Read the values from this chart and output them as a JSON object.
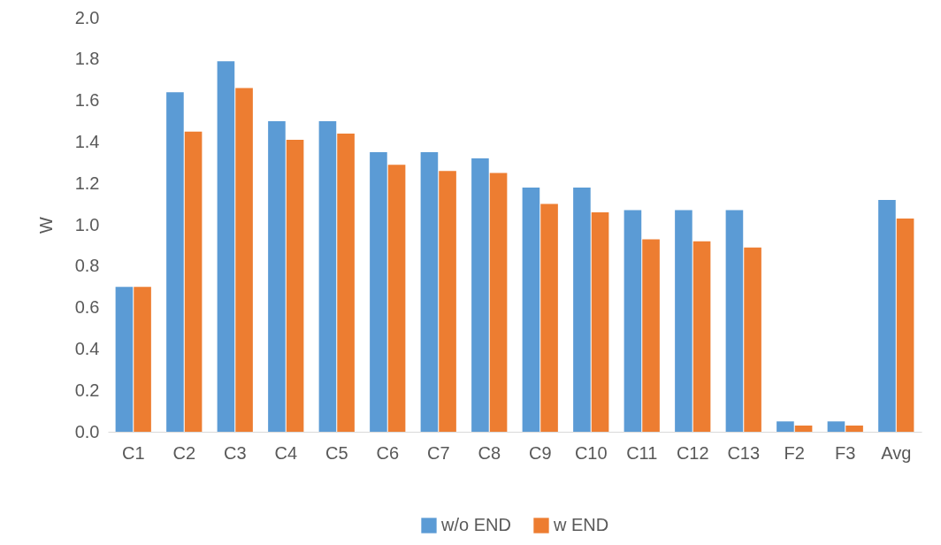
{
  "chart_data": {
    "type": "bar",
    "ylabel": "W",
    "categories": [
      "C1",
      "C2",
      "C3",
      "C4",
      "C5",
      "C6",
      "C7",
      "C8",
      "C9",
      "C10",
      "C11",
      "C12",
      "C13",
      "F2",
      "F3",
      "Avg"
    ],
    "series": [
      {
        "name": "w/o END",
        "color": "#5b9bd5",
        "values": [
          0.7,
          1.64,
          1.79,
          1.5,
          1.5,
          1.35,
          1.35,
          1.32,
          1.18,
          1.18,
          1.07,
          1.07,
          1.07,
          0.05,
          0.05,
          1.12
        ]
      },
      {
        "name": "w END",
        "color": "#ed7d31",
        "values": [
          0.7,
          1.45,
          1.66,
          1.41,
          1.44,
          1.29,
          1.26,
          1.25,
          1.1,
          1.06,
          0.93,
          0.92,
          0.89,
          0.03,
          0.03,
          1.03
        ]
      }
    ],
    "ylim": [
      0,
      2
    ],
    "yticks": [
      {
        "value": 0,
        "label": "0.0"
      },
      {
        "value": 0.2,
        "label": "0.2"
      },
      {
        "value": 0.4,
        "label": "0.4"
      },
      {
        "value": 0.6,
        "label": "0.6"
      },
      {
        "value": 0.8,
        "label": "0.8"
      },
      {
        "value": 1,
        "label": "1.0"
      },
      {
        "value": 1.2,
        "label": "1.2"
      },
      {
        "value": 1.4,
        "label": "1.4"
      },
      {
        "value": 1.6,
        "label": "1.6"
      },
      {
        "value": 1.8,
        "label": "1.8"
      },
      {
        "value": 2,
        "label": "2.0"
      }
    ],
    "grid": false,
    "legend": "bottom"
  }
}
